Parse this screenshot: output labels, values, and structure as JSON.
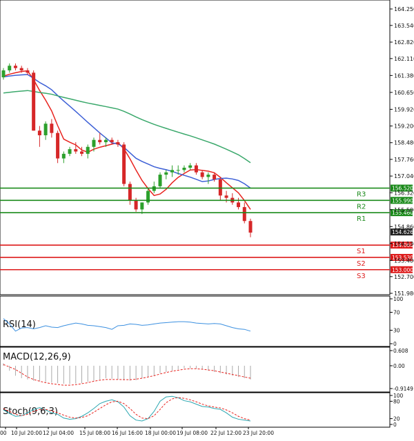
{
  "chart_data": {
    "type": "candlestick",
    "instrument_timeframe": "H4",
    "colors": {
      "up": "#2ca02c",
      "down": "#d62728",
      "ma_fast": "#e8231e",
      "ma_mid": "#3c5fd6",
      "ma_slow": "#3aa86b",
      "resistance": "#1a8a1a",
      "support": "#dd1a1a",
      "last_price_label": "#222222",
      "rsi": "#3a8fe0",
      "macd_signal": "#e8231e",
      "macd_hist": "#aaaaaa",
      "stoch_main": "#2aa6b0",
      "stoch_signal": "#e8231e"
    },
    "price_axis": {
      "ticks": [
        "164.250",
        "163.540",
        "162.820",
        "162.110",
        "161.380",
        "160.650",
        "159.920",
        "159.200",
        "158.480",
        "157.760",
        "157.040",
        "156.320",
        "155.590",
        "154.860",
        "154.130",
        "153.400",
        "152.700",
        "151.980"
      ],
      "last_price": "154.626"
    },
    "x_axis": {
      "labels": [
        "00",
        "10 Jul 20:00",
        "12 Jul 04:00",
        "15 Jul 08:00",
        "16 Jul 16:00",
        "18 Jul 00:00",
        "19 Jul 08:00",
        "22 Jul 12:00",
        "23 Jul 20:00"
      ]
    },
    "levels": [
      {
        "name": "R3",
        "value": 156.52,
        "label": "156.520",
        "kind": "resistance"
      },
      {
        "name": "R2",
        "value": 155.99,
        "label": "155.990",
        "kind": "resistance"
      },
      {
        "name": "R1",
        "value": 155.46,
        "label": "155.460",
        "kind": "resistance"
      },
      {
        "name": "S1",
        "value": 154.06,
        "label": "154.060",
        "kind": "support"
      },
      {
        "name": "S2",
        "value": 153.53,
        "label": "153.530",
        "kind": "support"
      },
      {
        "name": "S3",
        "value": 153.0,
        "label": "153.000",
        "kind": "support"
      }
    ],
    "candles": [
      [
        161.3,
        161.7,
        161.2,
        161.6
      ],
      [
        161.6,
        161.9,
        161.5,
        161.8
      ],
      [
        161.8,
        161.9,
        161.6,
        161.7
      ],
      [
        161.7,
        161.8,
        161.5,
        161.6
      ],
      [
        161.6,
        161.7,
        161.4,
        161.5
      ],
      [
        161.5,
        161.6,
        159.0,
        159.0
      ],
      [
        159.0,
        159.2,
        158.3,
        158.8
      ],
      [
        158.8,
        159.4,
        158.6,
        159.3
      ],
      [
        159.3,
        159.5,
        158.7,
        158.9
      ],
      [
        158.9,
        159.0,
        157.6,
        157.8
      ],
      [
        157.8,
        158.1,
        157.6,
        158.0
      ],
      [
        158.0,
        158.3,
        157.9,
        158.2
      ],
      [
        158.2,
        158.5,
        158.0,
        158.1
      ],
      [
        158.1,
        158.3,
        157.9,
        158.0
      ],
      [
        158.0,
        158.4,
        157.8,
        158.3
      ],
      [
        158.3,
        158.7,
        158.1,
        158.6
      ],
      [
        158.6,
        158.9,
        158.4,
        158.5
      ],
      [
        158.5,
        158.7,
        158.3,
        158.6
      ],
      [
        158.6,
        158.7,
        158.4,
        158.5
      ],
      [
        158.5,
        158.6,
        158.3,
        158.4
      ],
      [
        158.4,
        158.5,
        156.6,
        156.7
      ],
      [
        156.7,
        156.8,
        155.8,
        156.0
      ],
      [
        156.0,
        156.1,
        155.5,
        155.6
      ],
      [
        155.6,
        155.9,
        155.4,
        155.9
      ],
      [
        155.9,
        156.5,
        155.8,
        156.4
      ],
      [
        156.4,
        156.8,
        156.3,
        156.6
      ],
      [
        156.6,
        157.2,
        156.5,
        157.1
      ],
      [
        157.1,
        157.3,
        156.9,
        157.2
      ],
      [
        157.2,
        157.5,
        157.0,
        157.3
      ],
      [
        157.3,
        157.5,
        157.1,
        157.3
      ],
      [
        157.3,
        157.5,
        157.2,
        157.4
      ],
      [
        157.4,
        157.6,
        157.3,
        157.5
      ],
      [
        157.5,
        157.6,
        157.1,
        157.2
      ],
      [
        157.2,
        157.3,
        156.9,
        157.0
      ],
      [
        157.0,
        157.2,
        156.7,
        157.1
      ],
      [
        157.1,
        157.2,
        156.8,
        156.9
      ],
      [
        156.9,
        157.0,
        156.0,
        156.2
      ],
      [
        156.2,
        156.4,
        155.9,
        156.1
      ],
      [
        156.1,
        156.3,
        155.8,
        155.9
      ],
      [
        155.9,
        156.1,
        155.6,
        155.7
      ],
      [
        155.7,
        155.9,
        155.0,
        155.1
      ],
      [
        155.1,
        155.2,
        154.4,
        154.6
      ]
    ],
    "panels": [
      {
        "name": "RSI(14)",
        "axis_labels": [
          "100",
          "70",
          "30",
          "0"
        ],
        "values": [
          56,
          44,
          28,
          35,
          36,
          33,
          36,
          40,
          37,
          36,
          40,
          43,
          46,
          44,
          41,
          40,
          38,
          36,
          32,
          40,
          41,
          44,
          43,
          41,
          42,
          44,
          46,
          47,
          48,
          49,
          49,
          48,
          46,
          45,
          44,
          45,
          44,
          40,
          36,
          33,
          32,
          28
        ]
      },
      {
        "name": "MACD(12,26,9)",
        "axis_labels": [
          "0.608",
          "0.00",
          "-0.9149"
        ],
        "hist": [
          0.1,
          -0.2,
          -0.4,
          -0.5,
          -0.55,
          -0.6,
          -0.62,
          -0.65,
          -0.68,
          -0.7,
          -0.72,
          -0.73,
          -0.72,
          -0.7,
          -0.65,
          -0.6,
          -0.55,
          -0.5,
          -0.52,
          -0.55,
          -0.58,
          -0.6,
          -0.58,
          -0.5,
          -0.45,
          -0.4,
          -0.3,
          -0.25,
          -0.2,
          -0.15,
          -0.1,
          -0.1,
          -0.12,
          -0.15,
          -0.2,
          -0.25,
          -0.3,
          -0.35,
          -0.4,
          -0.45,
          -0.5,
          -0.55
        ],
        "signal": [
          0.05,
          -0.05,
          -0.15,
          -0.3,
          -0.45,
          -0.55,
          -0.62,
          -0.68,
          -0.72,
          -0.75,
          -0.78,
          -0.78,
          -0.76,
          -0.72,
          -0.68,
          -0.62,
          -0.58,
          -0.55,
          -0.55,
          -0.55,
          -0.56,
          -0.56,
          -0.54,
          -0.5,
          -0.45,
          -0.4,
          -0.33,
          -0.27,
          -0.22,
          -0.18,
          -0.14,
          -0.12,
          -0.12,
          -0.14,
          -0.17,
          -0.2,
          -0.25,
          -0.3,
          -0.35,
          -0.4,
          -0.45,
          -0.5
        ]
      },
      {
        "name": "Stoch(9,6,3)",
        "axis_labels": [
          "100",
          "80",
          "20",
          "0"
        ],
        "main": [
          50,
          38,
          28,
          30,
          40,
          52,
          58,
          50,
          40,
          35,
          22,
          18,
          20,
          28,
          40,
          55,
          72,
          80,
          85,
          78,
          60,
          30,
          15,
          12,
          20,
          45,
          80,
          95,
          97,
          92,
          82,
          78,
          70,
          62,
          60,
          55,
          52,
          40,
          25,
          18,
          15,
          12
        ],
        "signal": [
          55,
          45,
          35,
          30,
          35,
          45,
          52,
          52,
          47,
          40,
          32,
          25,
          22,
          24,
          30,
          42,
          55,
          68,
          78,
          80,
          72,
          55,
          35,
          22,
          20,
          30,
          52,
          75,
          88,
          93,
          90,
          85,
          78,
          70,
          64,
          60,
          57,
          50,
          40,
          28,
          20,
          15
        ]
      }
    ]
  }
}
